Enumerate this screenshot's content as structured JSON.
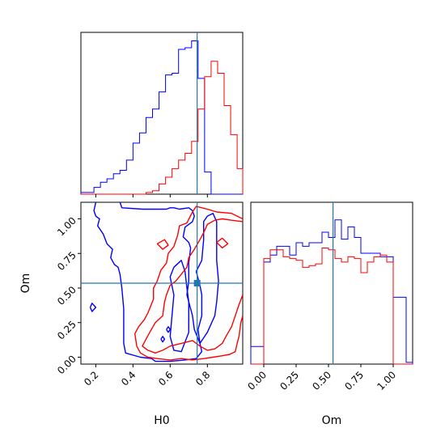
{
  "colors": {
    "series_a": "#0000ff",
    "series_b": "#ff0000",
    "truth": "#1f77b4",
    "axes": "#000000"
  },
  "chart_data": [
    {
      "panel": "hist-H0",
      "type": "histogram",
      "xlim": [
        0.12,
        0.99
      ],
      "x_ticks": [
        0.2,
        0.4,
        0.6,
        0.8
      ],
      "show_x_tick_labels": false,
      "show_y_ticks": false,
      "bin_edges": [
        0.12,
        0.155,
        0.19,
        0.225,
        0.26,
        0.295,
        0.33,
        0.365,
        0.4,
        0.435,
        0.47,
        0.505,
        0.54,
        0.575,
        0.61,
        0.645,
        0.68,
        0.715,
        0.75,
        0.785,
        0.82,
        0.855,
        0.89,
        0.925,
        0.96,
        0.99
      ],
      "series": [
        {
          "color": "blue",
          "counts": [
            1,
            1,
            4,
            7,
            9,
            12,
            14,
            20,
            30,
            36,
            45,
            50,
            60,
            70,
            71,
            85,
            86,
            90,
            68,
            13,
            0,
            0,
            0,
            0,
            0
          ]
        },
        {
          "color": "red",
          "counts": [
            0,
            0,
            0,
            0,
            0,
            0,
            0,
            0,
            0,
            0,
            1,
            2,
            6,
            10,
            15,
            20,
            24,
            31,
            50,
            69,
            78,
            71,
            52,
            35,
            15
          ]
        }
      ],
      "ymax": 95,
      "truth_x": 0.745
    },
    {
      "panel": "joint-H0-Om",
      "type": "contour",
      "xlim": [
        0.12,
        0.99
      ],
      "ylim": [
        -0.05,
        1.12
      ],
      "x_ticks": [
        0.2,
        0.4,
        0.6,
        0.8
      ],
      "y_ticks": [
        0.0,
        0.25,
        0.5,
        0.75,
        1.0
      ],
      "x_tick_labels": [
        "0.2",
        "0.4",
        "0.6",
        "0.8"
      ],
      "y_tick_labels": [
        "0.00",
        "0.25",
        "0.50",
        "0.75",
        "1.00"
      ],
      "xlabel": "H0",
      "ylabel": "Om",
      "truth": {
        "x": 0.745,
        "y": 0.535
      },
      "series": [
        {
          "color": "blue",
          "contours": [
            [
              [
                0.33,
                1.12
              ],
              [
                0.34,
                1.08
              ],
              [
                0.45,
                1.07
              ],
              [
                0.52,
                1.07
              ],
              [
                0.58,
                1.07
              ],
              [
                0.6,
                1.08
              ],
              [
                0.62,
                1.08
              ],
              [
                0.65,
                1.07
              ],
              [
                0.7,
                1.08
              ],
              [
                0.72,
                1.06
              ],
              [
                0.73,
                1.02
              ],
              [
                0.72,
                0.98
              ],
              [
                0.68,
                0.94
              ],
              [
                0.67,
                0.87
              ],
              [
                0.7,
                0.83
              ],
              [
                0.71,
                0.79
              ],
              [
                0.7,
                0.68
              ],
              [
                0.7,
                0.55
              ],
              [
                0.69,
                0.45
              ],
              [
                0.72,
                0.3
              ],
              [
                0.73,
                0.2
              ],
              [
                0.76,
                0.1
              ],
              [
                0.77,
                0.04
              ],
              [
                0.74,
                -0.01
              ],
              [
                0.68,
                -0.02
              ],
              [
                0.6,
                -0.03
              ],
              [
                0.52,
                -0.03
              ],
              [
                0.5,
                -0.01
              ],
              [
                0.44,
                0.0
              ],
              [
                0.36,
                0.03
              ],
              [
                0.35,
                0.1
              ],
              [
                0.35,
                0.2
              ],
              [
                0.35,
                0.35
              ],
              [
                0.34,
                0.5
              ],
              [
                0.33,
                0.6
              ],
              [
                0.32,
                0.65
              ],
              [
                0.3,
                0.67
              ],
              [
                0.28,
                0.72
              ],
              [
                0.29,
                0.78
              ],
              [
                0.26,
                0.82
              ],
              [
                0.24,
                0.89
              ],
              [
                0.21,
                0.95
              ],
              [
                0.22,
                1.0
              ],
              [
                0.2,
                1.02
              ],
              [
                0.19,
                1.06
              ],
              [
                0.2,
                1.12
              ]
            ],
            [
              [
                0.62,
                0.65
              ],
              [
                0.66,
                0.7
              ],
              [
                0.68,
                0.62
              ],
              [
                0.69,
                0.5
              ],
              [
                0.7,
                0.4
              ],
              [
                0.7,
                0.3
              ],
              [
                0.7,
                0.18
              ],
              [
                0.66,
                0.04
              ],
              [
                0.62,
                0.05
              ],
              [
                0.6,
                0.15
              ],
              [
                0.61,
                0.3
              ],
              [
                0.62,
                0.45
              ],
              [
                0.6,
                0.58
              ],
              [
                0.62,
                0.65
              ]
            ],
            [
              [
                0.74,
                0.62
              ],
              [
                0.77,
                0.7
              ],
              [
                0.78,
                0.85
              ],
              [
                0.78,
                0.98
              ],
              [
                0.8,
                1.02
              ],
              [
                0.83,
                1.04
              ],
              [
                0.85,
                0.98
              ],
              [
                0.85,
                0.85
              ],
              [
                0.85,
                0.7
              ],
              [
                0.86,
                0.55
              ],
              [
                0.85,
                0.4
              ],
              [
                0.84,
                0.3
              ],
              [
                0.8,
                0.18
              ],
              [
                0.76,
                0.1
              ],
              [
                0.75,
                0.2
              ],
              [
                0.77,
                0.3
              ],
              [
                0.77,
                0.45
              ],
              [
                0.76,
                0.52
              ],
              [
                0.74,
                0.62
              ]
            ],
            [
              [
                0.58,
                0.2
              ],
              [
                0.59,
                0.18
              ],
              [
                0.6,
                0.2
              ],
              [
                0.59,
                0.22
              ],
              [
                0.58,
                0.2
              ]
            ],
            [
              [
                0.55,
                0.13
              ],
              [
                0.56,
                0.11
              ],
              [
                0.57,
                0.13
              ],
              [
                0.56,
                0.15
              ],
              [
                0.55,
                0.13
              ]
            ],
            [
              [
                0.17,
                0.36
              ],
              [
                0.18,
                0.33
              ],
              [
                0.2,
                0.36
              ],
              [
                0.18,
                0.39
              ],
              [
                0.17,
                0.36
              ]
            ]
          ]
        },
        {
          "color": "red",
          "contours": [
            [
              [
                0.99,
                0.98
              ],
              [
                0.93,
                0.99
              ],
              [
                0.88,
                1.0
              ],
              [
                0.84,
                0.99
              ],
              [
                0.8,
                0.96
              ],
              [
                0.78,
                0.9
              ],
              [
                0.76,
                0.85
              ],
              [
                0.73,
                0.78
              ],
              [
                0.7,
                0.72
              ],
              [
                0.69,
                0.65
              ],
              [
                0.66,
                0.6
              ],
              [
                0.63,
                0.55
              ],
              [
                0.6,
                0.52
              ],
              [
                0.58,
                0.45
              ],
              [
                0.57,
                0.4
              ],
              [
                0.56,
                0.3
              ],
              [
                0.52,
                0.25
              ],
              [
                0.49,
                0.18
              ],
              [
                0.47,
                0.13
              ],
              [
                0.45,
                0.08
              ],
              [
                0.48,
                0.05
              ],
              [
                0.52,
                0.03
              ],
              [
                0.56,
                0.05
              ],
              [
                0.6,
                0.08
              ],
              [
                0.66,
                0.1
              ],
              [
                0.72,
                0.12
              ],
              [
                0.76,
                0.08
              ],
              [
                0.8,
                0.05
              ],
              [
                0.84,
                0.06
              ],
              [
                0.88,
                0.1
              ],
              [
                0.9,
                0.15
              ],
              [
                0.93,
                0.22
              ],
              [
                0.95,
                0.3
              ],
              [
                0.97,
                0.38
              ],
              [
                0.99,
                0.45
              ]
            ],
            [
              [
                0.99,
                1.0
              ],
              [
                0.93,
                1.04
              ],
              [
                0.85,
                1.05
              ],
              [
                0.8,
                1.07
              ],
              [
                0.74,
                1.09
              ],
              [
                0.72,
                1.05
              ],
              [
                0.69,
                0.97
              ],
              [
                0.65,
                0.95
              ],
              [
                0.64,
                0.88
              ],
              [
                0.62,
                0.8
              ],
              [
                0.59,
                0.75
              ],
              [
                0.58,
                0.68
              ],
              [
                0.55,
                0.63
              ],
              [
                0.53,
                0.55
              ],
              [
                0.51,
                0.5
              ],
              [
                0.51,
                0.42
              ],
              [
                0.48,
                0.32
              ],
              [
                0.46,
                0.27
              ],
              [
                0.43,
                0.22
              ],
              [
                0.41,
                0.17
              ],
              [
                0.42,
                0.08
              ],
              [
                0.44,
                0.03
              ],
              [
                0.48,
                0.0
              ],
              [
                0.53,
                -0.01
              ],
              [
                0.6,
                -0.02
              ],
              [
                0.66,
                -0.01
              ],
              [
                0.72,
                -0.02
              ],
              [
                0.78,
                -0.01
              ],
              [
                0.83,
                0.0
              ],
              [
                0.88,
                0.01
              ],
              [
                0.92,
                0.02
              ],
              [
                0.95,
                0.04
              ],
              [
                0.96,
                0.1
              ],
              [
                0.97,
                0.15
              ],
              [
                0.98,
                0.25
              ],
              [
                0.99,
                0.3
              ]
            ],
            [
              [
                0.53,
                0.82
              ],
              [
                0.57,
                0.85
              ],
              [
                0.59,
                0.81
              ],
              [
                0.56,
                0.78
              ],
              [
                0.53,
                0.82
              ]
            ],
            [
              [
                0.85,
                0.83
              ],
              [
                0.88,
                0.86
              ],
              [
                0.91,
                0.82
              ],
              [
                0.88,
                0.79
              ],
              [
                0.85,
                0.83
              ]
            ]
          ]
        }
      ]
    },
    {
      "panel": "hist-Om",
      "type": "histogram",
      "xlim": [
        -0.1,
        1.15
      ],
      "x_ticks": [
        0.0,
        0.25,
        0.5,
        0.75,
        1.0
      ],
      "x_tick_labels": [
        "0.00",
        "0.25",
        "0.50",
        "0.75",
        "1.00"
      ],
      "xlabel": "Om",
      "show_y_ticks": false,
      "bin_edges": [
        -0.1,
        -0.05,
        0.0,
        0.05,
        0.1,
        0.15,
        0.2,
        0.25,
        0.3,
        0.35,
        0.4,
        0.45,
        0.5,
        0.55,
        0.6,
        0.65,
        0.7,
        0.75,
        0.8,
        0.85,
        0.9,
        0.95,
        1.0,
        1.05,
        1.1,
        1.15
      ],
      "series": [
        {
          "color": "blue",
          "counts": [
            10,
            10,
            58,
            62,
            67,
            67,
            62,
            69,
            67,
            69,
            69,
            75,
            72,
            82,
            71,
            78,
            72,
            63,
            63,
            63,
            61,
            61,
            38,
            38,
            1
          ]
        },
        {
          "color": "red",
          "counts": [
            0,
            0,
            60,
            65,
            65,
            61,
            60,
            59,
            55,
            56,
            57,
            66,
            65,
            60,
            58,
            61,
            60,
            52,
            58,
            61,
            62,
            58,
            0,
            0,
            0
          ]
        }
      ],
      "ymax": 92,
      "truth_x": 0.535
    }
  ]
}
